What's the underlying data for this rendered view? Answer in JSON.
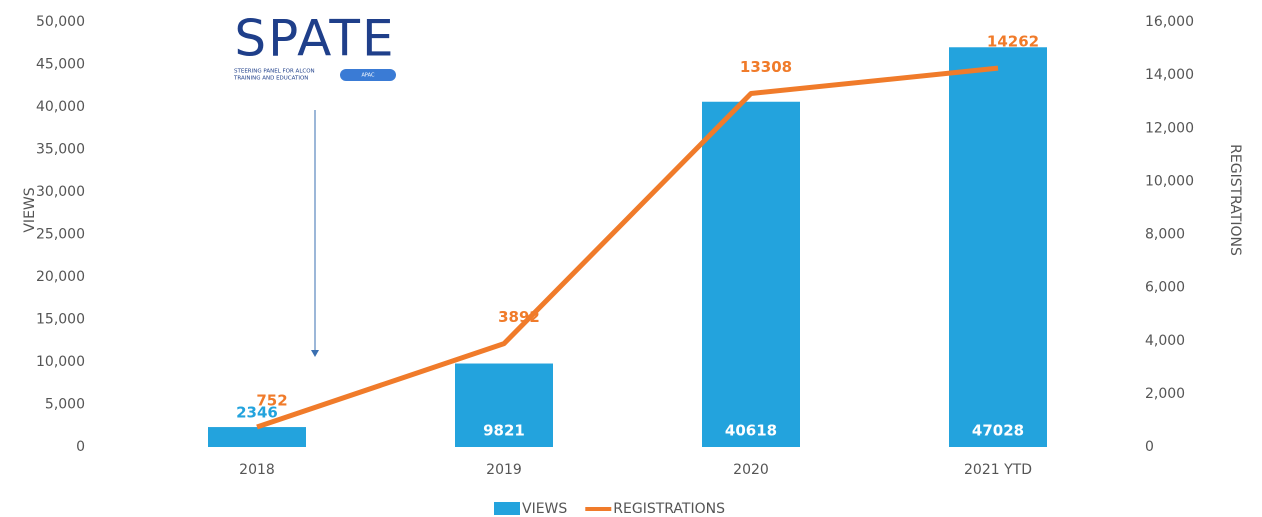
{
  "chart_data": {
    "type": "bar",
    "categories": [
      "2018",
      "2019",
      "2020",
      "2021 YTD"
    ],
    "series": [
      {
        "name": "VIEWS",
        "type": "bar",
        "color": "#23a3dd",
        "values": [
          2346,
          9821,
          40618,
          47028
        ]
      },
      {
        "name": "REGISTRATIONS",
        "type": "line",
        "axis": "y2",
        "color": "#f07b2a",
        "values": [
          752,
          3892,
          13308,
          14262
        ]
      }
    ],
    "ylabel": "VIEWS",
    "y2label": "REGISTRATIONS",
    "ylim": [
      0,
      50000
    ],
    "yticks": [
      {
        "value": 0,
        "label": "0"
      },
      {
        "value": 5000,
        "label": "5,000"
      },
      {
        "value": 10000,
        "label": "10,000"
      },
      {
        "value": 15000,
        "label": "15,000"
      },
      {
        "value": 20000,
        "label": "20,000"
      },
      {
        "value": 25000,
        "label": "25,000"
      },
      {
        "value": 30000,
        "label": "30,000"
      },
      {
        "value": 35000,
        "label": "35,000"
      },
      {
        "value": 40000,
        "label": "40,000"
      },
      {
        "value": 45000,
        "label": "45,000"
      },
      {
        "value": 50000,
        "label": "50,000"
      }
    ],
    "y2lim": [
      0,
      16000
    ],
    "y2ticks": [
      {
        "value": 0,
        "label": "0"
      },
      {
        "value": 2000,
        "label": "2,000"
      },
      {
        "value": 4000,
        "label": "4,000"
      },
      {
        "value": 6000,
        "label": "6,000"
      },
      {
        "value": 8000,
        "label": "8,000"
      },
      {
        "value": 10000,
        "label": "10,000"
      },
      {
        "value": 12000,
        "label": "12,000"
      },
      {
        "value": 14000,
        "label": "14,000"
      },
      {
        "value": 16000,
        "label": "16,000"
      }
    ],
    "grid": false,
    "legend": "bottom",
    "logo": {
      "title": "SPATE",
      "subtitle": [
        "STEERING PANEL FOR ALCON",
        "TRAINING AND EDUCATION"
      ],
      "tag": "APAC"
    }
  }
}
